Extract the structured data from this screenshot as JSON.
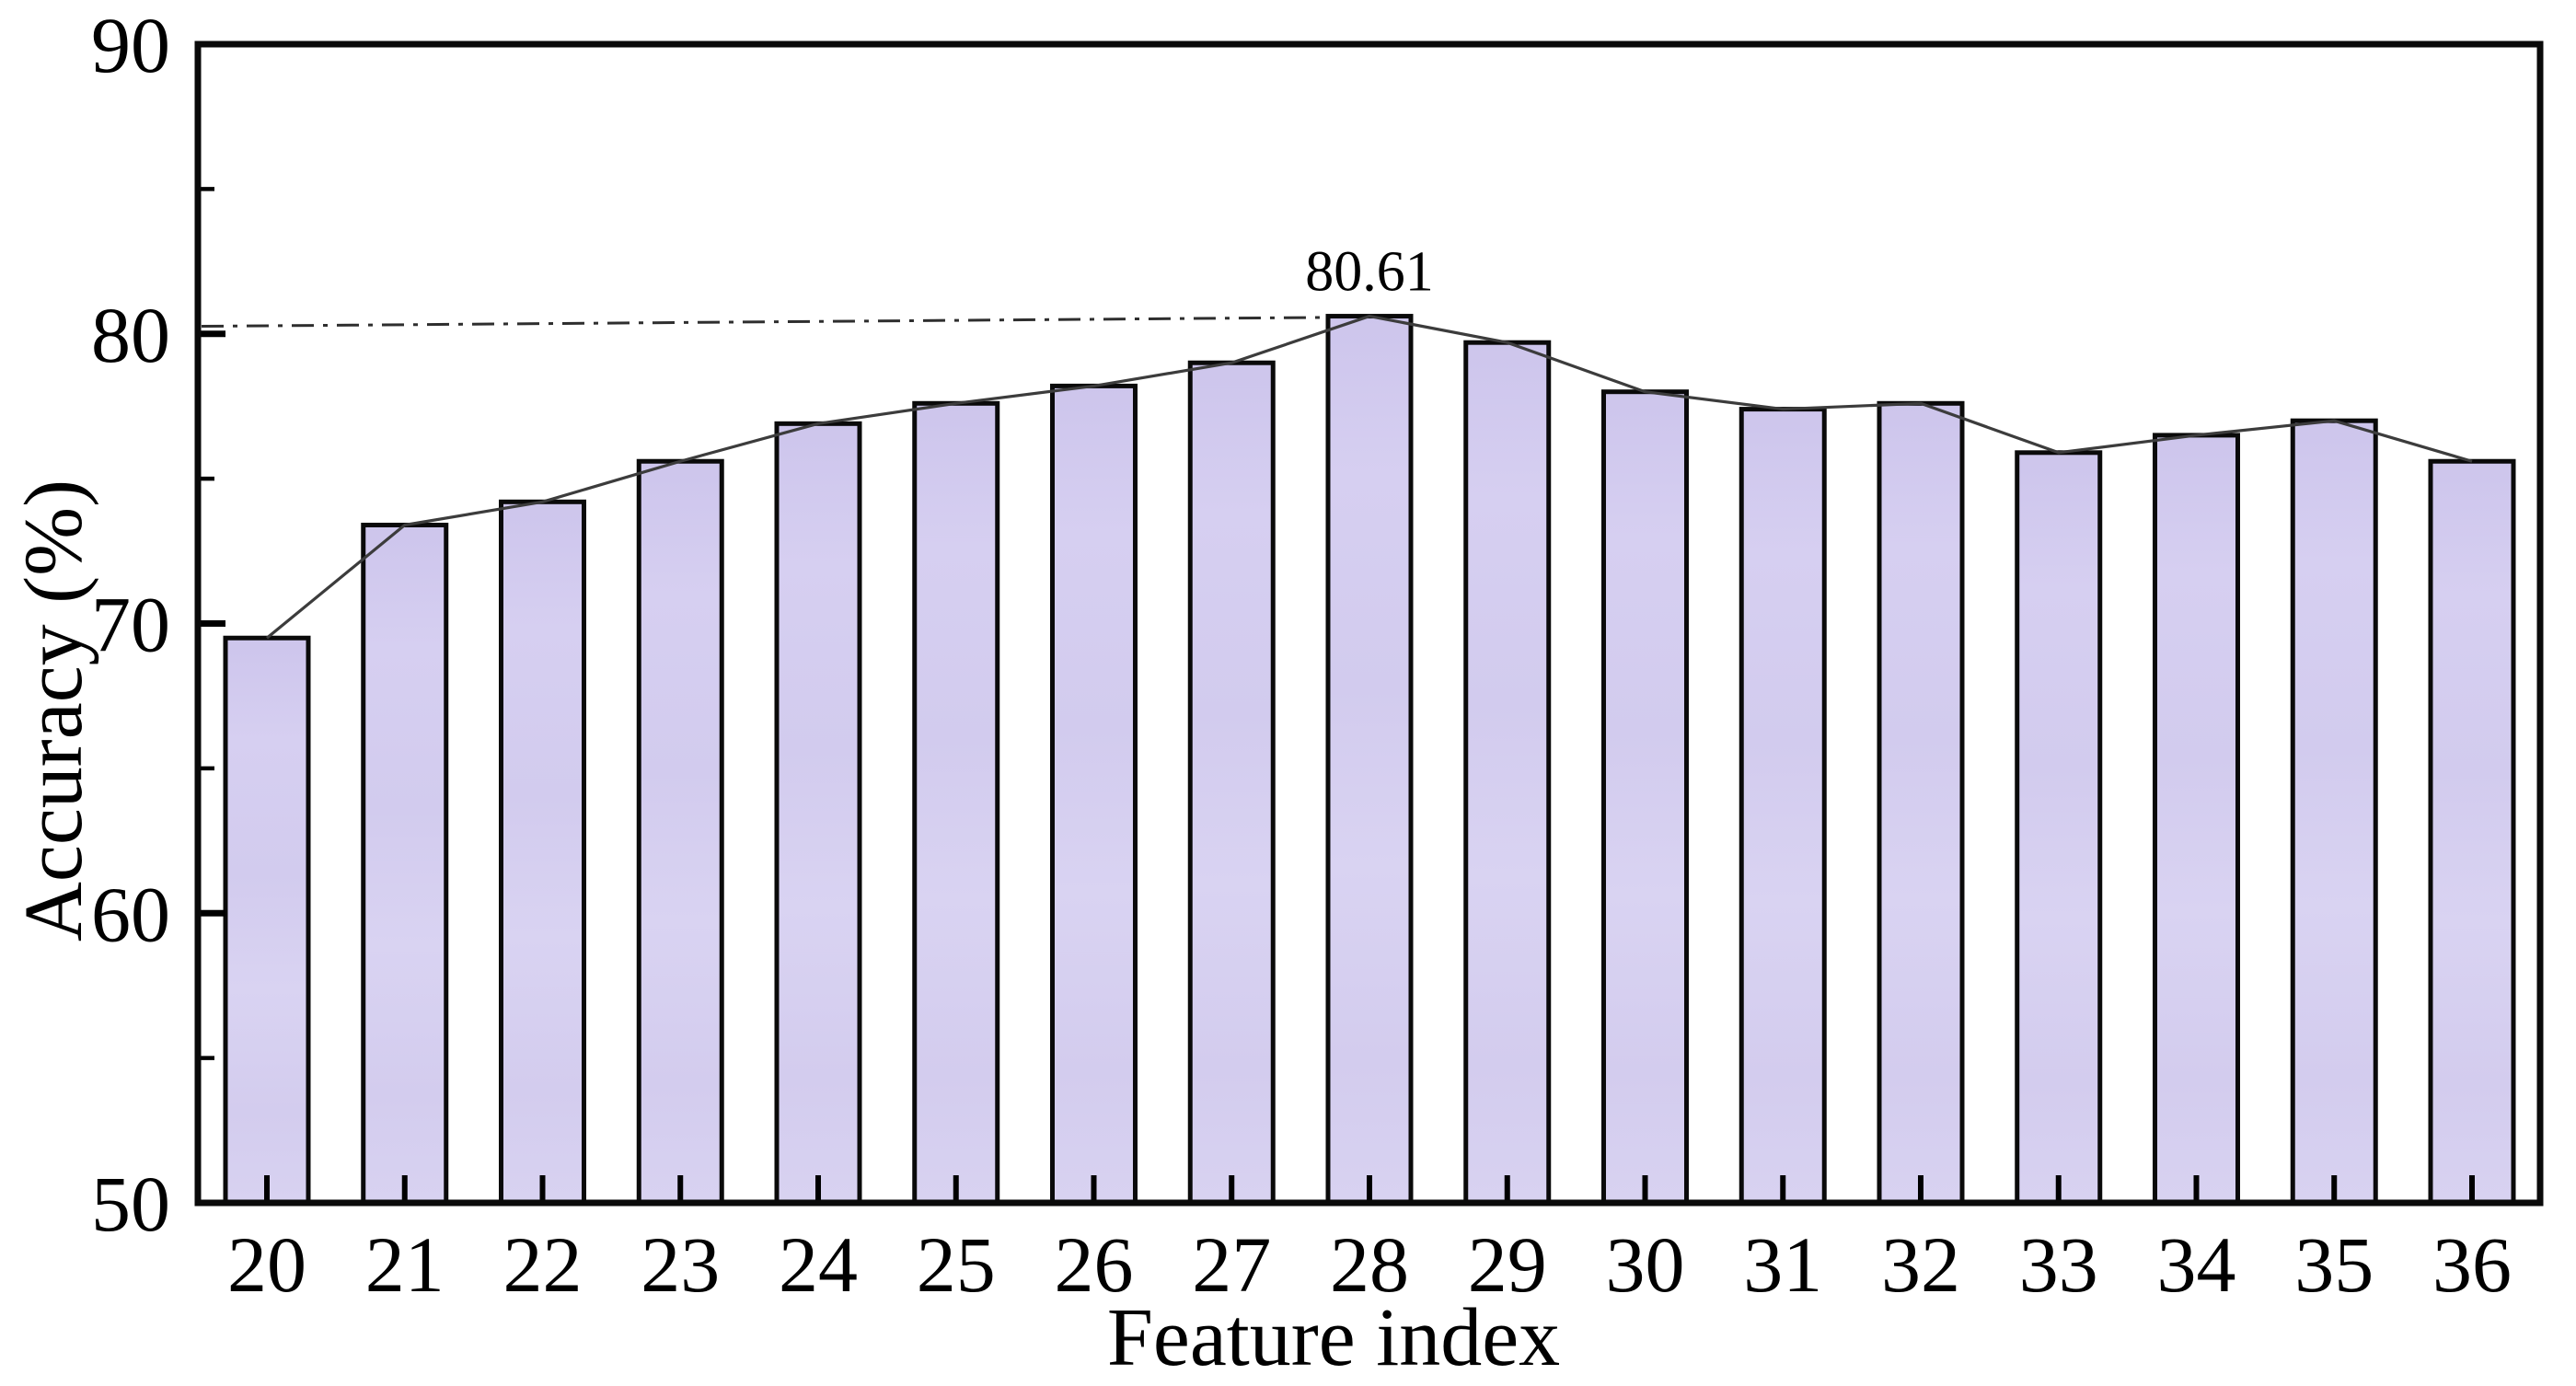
{
  "chart_data": {
    "type": "bar",
    "title": "",
    "xlabel": "Feature index",
    "ylabel": "Accuracy (%)",
    "categories": [
      "20",
      "21",
      "22",
      "23",
      "24",
      "25",
      "26",
      "27",
      "28",
      "29",
      "30",
      "31",
      "32",
      "33",
      "34",
      "35",
      "36"
    ],
    "values": [
      69.5,
      73.4,
      74.2,
      75.6,
      76.9,
      77.6,
      78.2,
      79.0,
      80.61,
      79.7,
      78.0,
      77.4,
      77.6,
      75.9,
      76.5,
      77.0,
      75.6
    ],
    "ylim": [
      50,
      90
    ],
    "y_major_ticks": [
      50,
      60,
      70,
      80,
      90
    ],
    "y_major_tick_labels": [
      "50",
      "60",
      "70",
      "80",
      "90"
    ],
    "y_minor_ticks": [
      55,
      65,
      75,
      85
    ],
    "grid": false,
    "legend": "none",
    "overlay_line": true,
    "annotation": {
      "text": "80.61",
      "category": "28",
      "color": "#d21212"
    },
    "reference_line": {
      "value": 80.61,
      "style": "dash-dot",
      "ends_at_category": "28"
    },
    "colors": {
      "bar_fill_top": "#cdc5ec",
      "bar_fill_mid": "#d6cff1",
      "bar_fill_low": "#d9d3f2",
      "bar_edge": "#0a0a0a",
      "series_line": "#3c3c3c",
      "reference_line": "#2e2e2e",
      "frame": "#0a0a0a",
      "background": "#ffffff"
    }
  }
}
